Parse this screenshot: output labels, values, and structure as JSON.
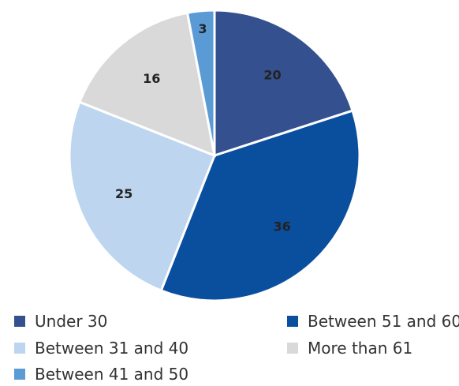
{
  "chart_data": {
    "type": "pie",
    "title": "",
    "categories": [
      "Under 30",
      "Between 51 and 60",
      "Between 31 and 40",
      "More than 61",
      "Between 41 and 50"
    ],
    "slices": [
      {
        "label": "Under 30",
        "value": 20,
        "color": "#34508f"
      },
      {
        "label": "Between 51 and 60",
        "value": 36,
        "color": "#0a4f9e"
      },
      {
        "label": "Between 31 and 40",
        "value": 25,
        "color": "#bdd5ef"
      },
      {
        "label": "More than 61",
        "value": 16,
        "color": "#d9d9d9"
      },
      {
        "label": "Between 41 and 50",
        "value": 3,
        "color": "#5b9bd5"
      }
    ],
    "legend_placement": "bottom"
  }
}
